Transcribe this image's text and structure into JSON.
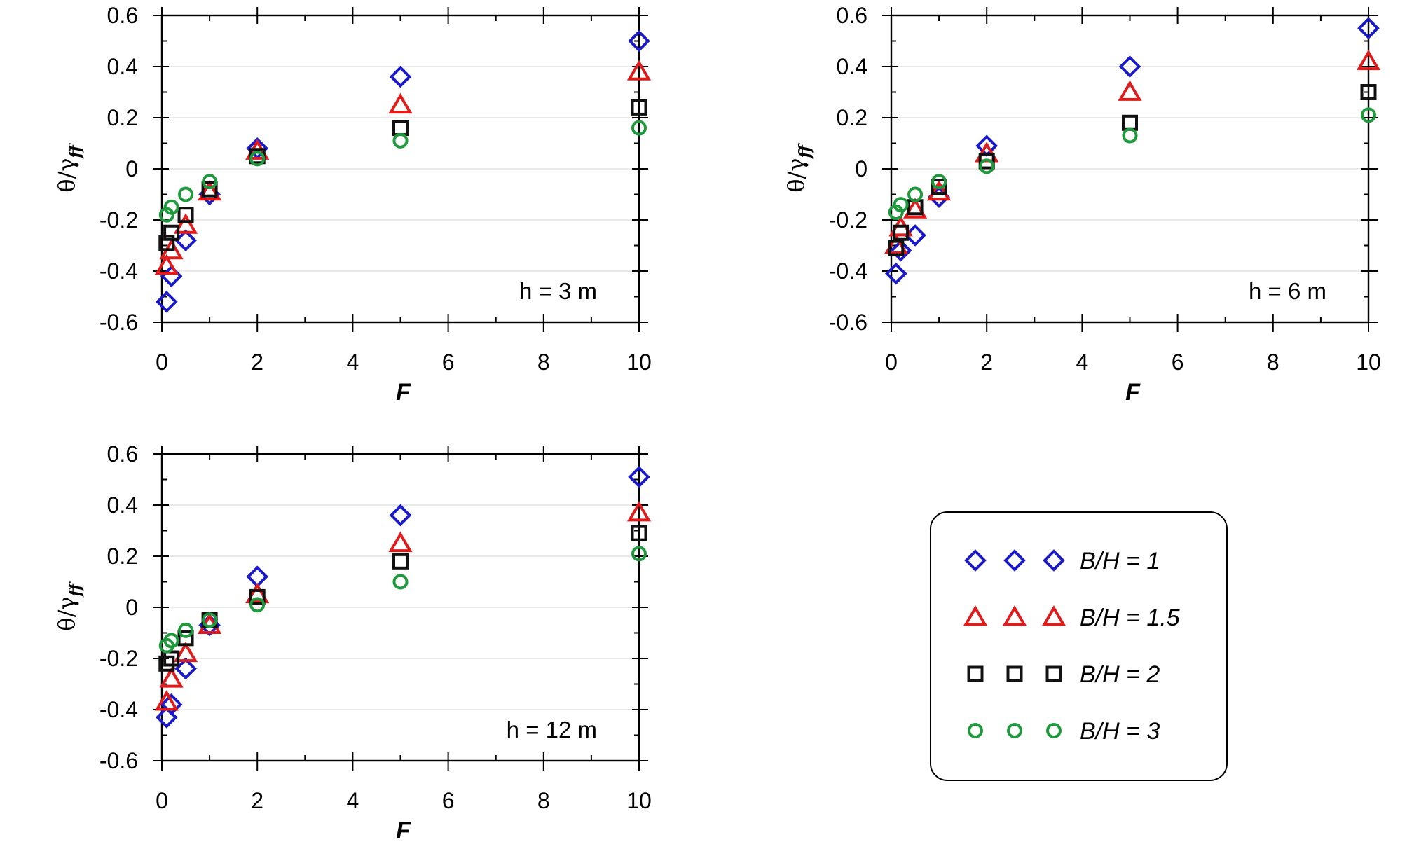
{
  "chart_data": [
    {
      "type": "scatter",
      "annotation": "h = 3 m",
      "xlabel": "F",
      "ylabel_main": "θ/γ",
      "ylabel_sub": "ff",
      "xlim": [
        0,
        10
      ],
      "ylim": [
        -0.6,
        0.6
      ],
      "xticks": [
        0,
        2,
        4,
        6,
        8,
        10
      ],
      "xtick_labels": [
        "0",
        "2",
        "4",
        "6",
        "8",
        "10"
      ],
      "yticks": [
        0.6,
        0.4,
        0.2,
        0,
        -0.2,
        -0.4,
        -0.6
      ],
      "ytick_labels": [
        "0.6",
        "0.4",
        "0.2",
        "0",
        "-0.2",
        "-0.4",
        "-0.6"
      ],
      "grid": true,
      "x": [
        0.1,
        0.2,
        0.5,
        1,
        2,
        5,
        10
      ],
      "series": [
        {
          "name": "B/H = 1",
          "marker": "diamond",
          "color": "#1a1ac8",
          "values": [
            -0.52,
            -0.42,
            -0.28,
            -0.1,
            0.08,
            0.36,
            0.5
          ]
        },
        {
          "name": "B/H = 1.5",
          "marker": "triangle",
          "color": "#e01b1b",
          "values": [
            -0.38,
            -0.32,
            -0.22,
            -0.09,
            0.07,
            0.25,
            0.38
          ]
        },
        {
          "name": "B/H = 2",
          "marker": "square",
          "color": "#111111",
          "values": [
            -0.29,
            -0.25,
            -0.18,
            -0.08,
            0.05,
            0.16,
            0.24
          ]
        },
        {
          "name": "B/H = 3",
          "marker": "circle",
          "color": "#1e9a3c",
          "values": [
            -0.18,
            -0.15,
            -0.1,
            -0.05,
            0.04,
            0.11,
            0.16
          ]
        }
      ]
    },
    {
      "type": "scatter",
      "annotation": "h = 6 m",
      "xlabel": "F",
      "ylabel_main": "θ/γ",
      "ylabel_sub": "ff",
      "xlim": [
        0,
        10
      ],
      "ylim": [
        -0.6,
        0.6
      ],
      "xticks": [
        0,
        2,
        4,
        6,
        8,
        10
      ],
      "xtick_labels": [
        "0",
        "2",
        "4",
        "6",
        "8",
        "10"
      ],
      "yticks": [
        0.6,
        0.4,
        0.2,
        0,
        -0.2,
        -0.4,
        -0.6
      ],
      "ytick_labels": [
        "0.6",
        "0.4",
        "0.2",
        "0",
        "-0.2",
        "-0.4",
        "-0.6"
      ],
      "grid": true,
      "x": [
        0.1,
        0.2,
        0.5,
        1,
        2,
        5,
        10
      ],
      "series": [
        {
          "name": "B/H = 1",
          "marker": "diamond",
          "color": "#1a1ac8",
          "values": [
            -0.41,
            -0.32,
            -0.26,
            -0.11,
            0.09,
            0.4,
            0.55
          ]
        },
        {
          "name": "B/H = 1.5",
          "marker": "triangle",
          "color": "#e01b1b",
          "values": [
            -0.3,
            -0.23,
            -0.16,
            -0.09,
            0.06,
            0.3,
            0.42
          ]
        },
        {
          "name": "B/H = 2",
          "marker": "square",
          "color": "#111111",
          "values": [
            -0.31,
            -0.25,
            -0.15,
            -0.07,
            0.03,
            0.18,
            0.3
          ]
        },
        {
          "name": "B/H = 3",
          "marker": "circle",
          "color": "#1e9a3c",
          "values": [
            -0.17,
            -0.14,
            -0.1,
            -0.05,
            0.01,
            0.13,
            0.21
          ]
        }
      ]
    },
    {
      "type": "scatter",
      "annotation": "h = 12 m",
      "xlabel": "F",
      "ylabel_main": "θ/γ",
      "ylabel_sub": "ff",
      "xlim": [
        0,
        10
      ],
      "ylim": [
        -0.6,
        0.6
      ],
      "xticks": [
        0,
        2,
        4,
        6,
        8,
        10
      ],
      "xtick_labels": [
        "0",
        "2",
        "4",
        "6",
        "8",
        "10"
      ],
      "yticks": [
        0.6,
        0.4,
        0.2,
        0,
        -0.2,
        -0.4,
        -0.6
      ],
      "ytick_labels": [
        "0.6",
        "0.4",
        "0.2",
        "0",
        "-0.2",
        "-0.4",
        "-0.6"
      ],
      "grid": true,
      "x": [
        0.1,
        0.2,
        0.5,
        1,
        2,
        5,
        10
      ],
      "series": [
        {
          "name": "B/H = 1",
          "marker": "diamond",
          "color": "#1a1ac8",
          "values": [
            -0.43,
            -0.38,
            -0.24,
            -0.07,
            0.12,
            0.36,
            0.51
          ]
        },
        {
          "name": "B/H = 1.5",
          "marker": "triangle",
          "color": "#e01b1b",
          "values": [
            -0.37,
            -0.28,
            -0.18,
            -0.07,
            0.05,
            0.25,
            0.37
          ]
        },
        {
          "name": "B/H = 2",
          "marker": "square",
          "color": "#111111",
          "values": [
            -0.22,
            -0.2,
            -0.12,
            -0.05,
            0.04,
            0.18,
            0.29
          ]
        },
        {
          "name": "B/H = 3",
          "marker": "circle",
          "color": "#1e9a3c",
          "values": [
            -0.15,
            -0.13,
            -0.09,
            -0.05,
            0.01,
            0.1,
            0.21
          ]
        }
      ]
    }
  ],
  "legend": {
    "placement": "bottom-right",
    "entries": [
      {
        "label": "B/H = 1",
        "marker": "diamond",
        "color": "#1a1ac8"
      },
      {
        "label": "B/H = 1.5",
        "marker": "triangle",
        "color": "#e01b1b"
      },
      {
        "label": "B/H = 2",
        "marker": "square",
        "color": "#111111"
      },
      {
        "label": "B/H = 3",
        "marker": "circle",
        "color": "#1e9a3c"
      }
    ]
  }
}
